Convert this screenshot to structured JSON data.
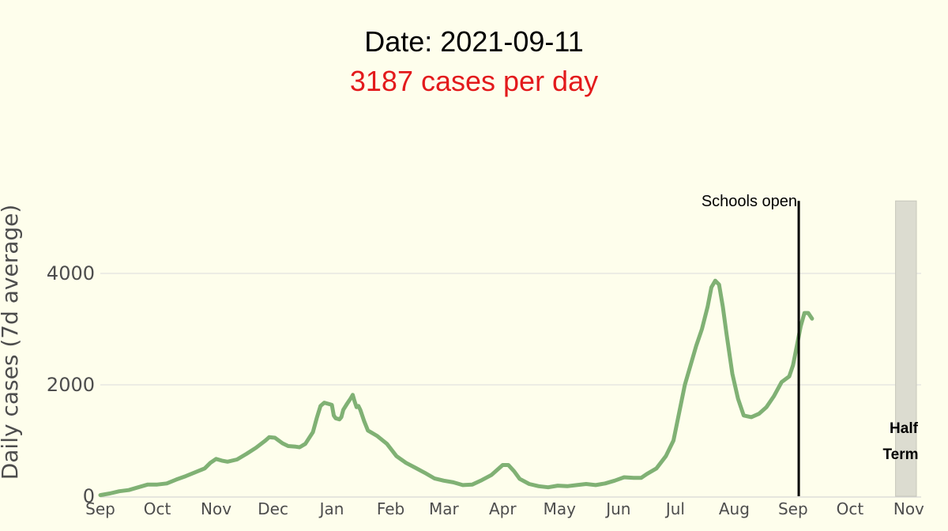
{
  "title": "Date: 2021-09-11",
  "subtitle": "3187 cases per day",
  "colors": {
    "background": "#fefeec",
    "line": "#80b174",
    "subtitle": "#e31a1c",
    "gridline": "#dcdcdc",
    "half_term_band": "#dcdcd0",
    "schools_open_line": "#000000"
  },
  "chart_data": {
    "type": "line",
    "ylabel": "Daily cases (7d average)",
    "xlabel": "",
    "ylim": [
      0,
      5500
    ],
    "xlim": [
      "2020-09-01",
      "2021-11-05"
    ],
    "y_ticks": [
      0,
      2000,
      4000
    ],
    "x_ticks": [
      {
        "label": "Sep",
        "date": "2020-09-01"
      },
      {
        "label": "Oct",
        "date": "2020-10-01"
      },
      {
        "label": "Nov",
        "date": "2020-11-01"
      },
      {
        "label": "Dec",
        "date": "2020-12-01"
      },
      {
        "label": "Jan",
        "date": "2021-01-01"
      },
      {
        "label": "Feb",
        "date": "2021-02-01"
      },
      {
        "label": "Mar",
        "date": "2021-03-01"
      },
      {
        "label": "Apr",
        "date": "2021-04-01"
      },
      {
        "label": "May",
        "date": "2021-05-01"
      },
      {
        "label": "Jun",
        "date": "2021-06-01"
      },
      {
        "label": "Jul",
        "date": "2021-07-01"
      },
      {
        "label": "Aug",
        "date": "2021-08-01"
      },
      {
        "label": "Sep",
        "date": "2021-09-01"
      },
      {
        "label": "Oct",
        "date": "2021-10-01"
      },
      {
        "label": "Nov",
        "date": "2021-11-01"
      }
    ],
    "grid": true,
    "annotations": [
      {
        "type": "vline",
        "date": "2021-09-04",
        "label": "Schools open"
      },
      {
        "type": "band",
        "start": "2021-10-25",
        "end": "2021-11-05",
        "label_line1": "Half",
        "label_line2": "Term"
      }
    ],
    "series": [
      {
        "name": "",
        "points": [
          [
            "2020-09-01",
            20
          ],
          [
            "2020-09-06",
            50
          ],
          [
            "2020-09-11",
            90
          ],
          [
            "2020-09-16",
            110
          ],
          [
            "2020-09-21",
            160
          ],
          [
            "2020-09-26",
            210
          ],
          [
            "2020-10-01",
            210
          ],
          [
            "2020-10-06",
            230
          ],
          [
            "2020-10-11",
            300
          ],
          [
            "2020-10-16",
            360
          ],
          [
            "2020-10-21",
            430
          ],
          [
            "2020-10-26",
            500
          ],
          [
            "2020-10-29",
            600
          ],
          [
            "2020-11-01",
            670
          ],
          [
            "2020-11-04",
            640
          ],
          [
            "2020-11-07",
            620
          ],
          [
            "2020-11-12",
            660
          ],
          [
            "2020-11-17",
            760
          ],
          [
            "2020-11-22",
            870
          ],
          [
            "2020-11-27",
            1000
          ],
          [
            "2020-11-29",
            1060
          ],
          [
            "2020-12-02",
            1050
          ],
          [
            "2020-12-06",
            950
          ],
          [
            "2020-12-09",
            900
          ],
          [
            "2020-12-13",
            890
          ],
          [
            "2020-12-15",
            880
          ],
          [
            "2020-12-18",
            940
          ],
          [
            "2020-12-22",
            1150
          ],
          [
            "2020-12-24",
            1400
          ],
          [
            "2020-12-26",
            1620
          ],
          [
            "2020-12-28",
            1680
          ],
          [
            "2021-01-01",
            1640
          ],
          [
            "2021-01-02",
            1450
          ],
          [
            "2021-01-03",
            1400
          ],
          [
            "2021-01-05",
            1380
          ],
          [
            "2021-01-06",
            1420
          ],
          [
            "2021-01-07",
            1550
          ],
          [
            "2021-01-09",
            1660
          ],
          [
            "2021-01-11",
            1760
          ],
          [
            "2021-01-12",
            1820
          ],
          [
            "2021-01-13",
            1700
          ],
          [
            "2021-01-14",
            1600
          ],
          [
            "2021-01-15",
            1620
          ],
          [
            "2021-01-16",
            1550
          ],
          [
            "2021-01-18",
            1350
          ],
          [
            "2021-01-20",
            1180
          ],
          [
            "2021-01-25",
            1080
          ],
          [
            "2021-01-30",
            940
          ],
          [
            "2021-02-04",
            720
          ],
          [
            "2021-02-09",
            600
          ],
          [
            "2021-02-14",
            510
          ],
          [
            "2021-02-19",
            420
          ],
          [
            "2021-02-24",
            320
          ],
          [
            "2021-03-01",
            280
          ],
          [
            "2021-03-06",
            250
          ],
          [
            "2021-03-11",
            200
          ],
          [
            "2021-03-16",
            210
          ],
          [
            "2021-03-21",
            290
          ],
          [
            "2021-03-26",
            380
          ],
          [
            "2021-03-29",
            470
          ],
          [
            "2021-04-01",
            560
          ],
          [
            "2021-04-04",
            560
          ],
          [
            "2021-04-07",
            450
          ],
          [
            "2021-04-10",
            310
          ],
          [
            "2021-04-15",
            220
          ],
          [
            "2021-04-20",
            180
          ],
          [
            "2021-04-25",
            160
          ],
          [
            "2021-04-30",
            190
          ],
          [
            "2021-05-05",
            180
          ],
          [
            "2021-05-10",
            200
          ],
          [
            "2021-05-15",
            220
          ],
          [
            "2021-05-20",
            200
          ],
          [
            "2021-05-25",
            230
          ],
          [
            "2021-05-30",
            280
          ],
          [
            "2021-06-04",
            340
          ],
          [
            "2021-06-09",
            330
          ],
          [
            "2021-06-13",
            330
          ],
          [
            "2021-06-16",
            400
          ],
          [
            "2021-06-21",
            500
          ],
          [
            "2021-06-26",
            720
          ],
          [
            "2021-06-30",
            1000
          ],
          [
            "2021-07-03",
            1500
          ],
          [
            "2021-07-06",
            2000
          ],
          [
            "2021-07-09",
            2350
          ],
          [
            "2021-07-12",
            2700
          ],
          [
            "2021-07-15",
            3000
          ],
          [
            "2021-07-18",
            3400
          ],
          [
            "2021-07-20",
            3750
          ],
          [
            "2021-07-22",
            3870
          ],
          [
            "2021-07-24",
            3800
          ],
          [
            "2021-07-26",
            3400
          ],
          [
            "2021-07-28",
            2900
          ],
          [
            "2021-07-31",
            2200
          ],
          [
            "2021-08-03",
            1750
          ],
          [
            "2021-08-06",
            1450
          ],
          [
            "2021-08-10",
            1420
          ],
          [
            "2021-08-14",
            1480
          ],
          [
            "2021-08-18",
            1600
          ],
          [
            "2021-08-22",
            1800
          ],
          [
            "2021-08-26",
            2050
          ],
          [
            "2021-08-30",
            2150
          ],
          [
            "2021-09-01",
            2350
          ],
          [
            "2021-09-03",
            2700
          ],
          [
            "2021-09-05",
            3050
          ],
          [
            "2021-09-07",
            3290
          ],
          [
            "2021-09-09",
            3290
          ],
          [
            "2021-09-11",
            3187
          ]
        ]
      }
    ]
  }
}
